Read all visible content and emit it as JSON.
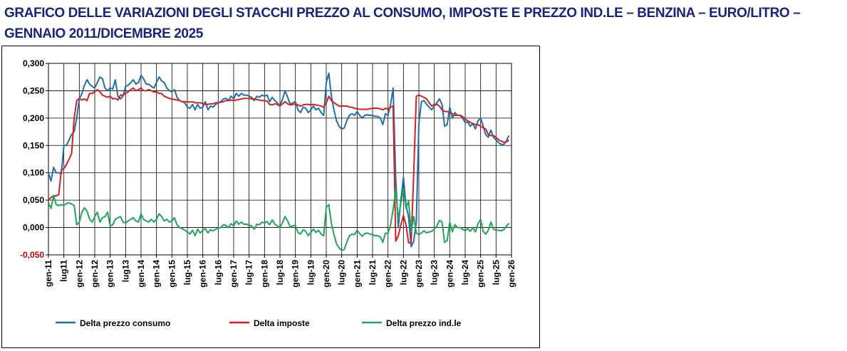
{
  "chart_data": {
    "type": "line",
    "title": "GRAFICO DELLE VARIAZIONI DEGLI STACCHI PREZZO AL CONSUMO, IMPOSTE E PREZZO IND.LE – BENZINA – EURO/LITRO – GENNAIO 2011/DICEMBRE 2025",
    "categories": [
      "gen-11",
      null,
      null,
      null,
      null,
      null,
      "lug11",
      null,
      null,
      null,
      null,
      null,
      "gen-12",
      null,
      null,
      null,
      null,
      null,
      "gen-12",
      null,
      null,
      null,
      null,
      null,
      "gen-13",
      null,
      null,
      null,
      null,
      null,
      "lug13",
      null,
      null,
      null,
      null,
      null,
      "gen-14",
      null,
      null,
      null,
      null,
      null,
      "gen-14",
      null,
      null,
      null,
      null,
      null,
      "gen-15",
      null,
      null,
      null,
      null,
      null,
      "lug-15",
      null,
      null,
      null,
      null,
      null,
      "gen-16",
      null,
      null,
      null,
      null,
      null,
      "lug-16",
      null,
      null,
      null,
      null,
      null,
      "gen-17",
      null,
      null,
      null,
      null,
      null,
      "lug-17",
      null,
      null,
      null,
      null,
      null,
      "gen-18",
      null,
      null,
      null,
      null,
      null,
      "lug-18",
      null,
      null,
      null,
      null,
      null,
      "gen-19",
      null,
      null,
      null,
      null,
      null,
      "lug-19",
      null,
      null,
      null,
      null,
      null,
      "gen-20",
      null,
      null,
      null,
      null,
      null,
      "lug-20",
      null,
      null,
      null,
      null,
      null,
      "gen-21",
      null,
      null,
      null,
      null,
      null,
      "lug-21",
      null,
      null,
      null,
      null,
      null,
      "gen-22",
      null,
      null,
      null,
      null,
      null,
      "lug-22",
      null,
      null,
      null,
      null,
      null,
      "gen-23",
      null,
      null,
      null,
      null,
      null,
      "lug-23",
      null,
      null,
      null,
      null,
      null,
      "gen-24",
      null,
      null,
      null,
      null,
      null,
      "lug-24",
      null,
      null,
      null,
      null,
      null,
      "gen-25",
      null,
      null,
      null,
      null,
      null,
      "lug-25",
      null,
      null,
      null,
      null,
      null,
      "gen-26"
    ],
    "series": [
      {
        "name": "Delta prezzo consumo",
        "color": "#1f6fa8",
        "values": [
          0.1,
          0.085,
          0.11,
          0.1,
          0.1,
          0.098,
          0.15,
          0.15,
          0.16,
          0.17,
          0.175,
          0.2,
          0.235,
          0.245,
          0.26,
          0.27,
          0.262,
          0.258,
          0.255,
          0.265,
          0.275,
          0.272,
          0.255,
          0.25,
          0.255,
          0.253,
          0.27,
          0.24,
          0.235,
          0.24,
          0.258,
          0.26,
          0.265,
          0.27,
          0.262,
          0.265,
          0.278,
          0.272,
          0.262,
          0.262,
          0.258,
          0.255,
          0.265,
          0.275,
          0.268,
          0.265,
          0.255,
          0.25,
          0.248,
          0.252,
          0.238,
          0.232,
          0.23,
          0.228,
          0.22,
          0.218,
          0.225,
          0.215,
          0.225,
          0.218,
          0.22,
          0.23,
          0.215,
          0.222,
          0.22,
          0.225,
          0.228,
          0.23,
          0.235,
          0.236,
          0.232,
          0.24,
          0.235,
          0.245,
          0.24,
          0.245,
          0.242,
          0.242,
          0.24,
          0.238,
          0.232,
          0.24,
          0.238,
          0.242,
          0.24,
          0.242,
          0.23,
          0.238,
          0.232,
          0.228,
          0.222,
          0.235,
          0.25,
          0.238,
          0.225,
          0.228,
          0.23,
          0.215,
          0.21,
          0.22,
          0.218,
          0.21,
          0.215,
          0.222,
          0.215,
          0.218,
          0.21,
          0.205,
          0.265,
          0.282,
          0.24,
          0.215,
          0.195,
          0.185,
          0.18,
          0.182,
          0.195,
          0.205,
          0.208,
          0.205,
          0.212,
          0.205,
          0.2,
          0.205,
          0.206,
          0.205,
          0.205,
          0.203,
          0.203,
          0.2,
          0.188,
          0.208,
          0.205,
          0.225,
          0.255,
          0.09,
          0.0,
          0.05,
          0.092,
          0.04,
          0.02,
          -0.035,
          -0.025,
          0.01,
          0.19,
          0.23,
          0.232,
          0.225,
          0.22,
          0.215,
          0.222,
          0.228,
          0.235,
          0.225,
          0.185,
          0.188,
          0.22,
          0.2,
          0.21,
          0.205,
          0.205,
          0.2,
          0.192,
          0.193,
          0.185,
          0.19,
          0.18,
          0.195,
          0.2,
          0.185,
          0.17,
          0.165,
          0.178,
          0.165,
          0.16,
          0.155,
          0.152,
          0.152,
          0.158,
          0.168,
          null
        ]
      },
      {
        "name": "Delta imposte",
        "color": "#d42020",
        "values": [
          0.05,
          0.055,
          0.058,
          0.058,
          0.06,
          0.105,
          0.108,
          0.115,
          0.125,
          0.135,
          0.2,
          0.232,
          0.236,
          0.233,
          0.235,
          0.232,
          0.245,
          0.245,
          0.248,
          0.252,
          0.248,
          0.242,
          0.24,
          0.238,
          0.24,
          0.235,
          0.236,
          0.233,
          0.242,
          0.242,
          0.245,
          0.248,
          0.252,
          0.255,
          0.25,
          0.252,
          0.255,
          0.25,
          0.25,
          0.252,
          0.25,
          0.248,
          0.248,
          0.245,
          0.245,
          0.24,
          0.238,
          0.236,
          0.235,
          0.234,
          0.233,
          0.232,
          0.23,
          0.23,
          0.23,
          0.229,
          0.23,
          0.228,
          0.228,
          0.228,
          0.227,
          0.225,
          0.225,
          0.226,
          0.226,
          0.228,
          0.228,
          0.229,
          0.23,
          0.232,
          0.232,
          0.233,
          0.232,
          0.233,
          0.234,
          0.235,
          0.236,
          0.236,
          0.236,
          0.235,
          0.235,
          0.234,
          0.233,
          0.232,
          0.232,
          0.231,
          0.225,
          0.224,
          0.226,
          0.225,
          0.222,
          0.226,
          0.23,
          0.226,
          0.224,
          0.225,
          0.226,
          0.224,
          0.222,
          0.224,
          0.225,
          0.225,
          0.224,
          0.225,
          0.224,
          0.223,
          0.222,
          0.22,
          0.228,
          0.24,
          0.232,
          0.228,
          0.225,
          0.222,
          0.222,
          0.222,
          0.222,
          0.22,
          0.22,
          0.218,
          0.217,
          0.216,
          0.216,
          0.216,
          0.216,
          0.217,
          0.218,
          0.218,
          0.218,
          0.217,
          0.215,
          0.218,
          0.216,
          0.22,
          0.222,
          -0.025,
          -0.015,
          0.005,
          0.022,
          0.005,
          -0.028,
          -0.028,
          0.1,
          0.24,
          0.242,
          0.24,
          0.238,
          0.235,
          0.228,
          0.222,
          0.225,
          0.225,
          0.222,
          0.215,
          0.212,
          0.212,
          0.21,
          0.208,
          0.205,
          0.205,
          0.205,
          0.203,
          0.198,
          0.195,
          0.192,
          0.19,
          0.188,
          0.188,
          0.185,
          0.182,
          0.18,
          0.17,
          0.168,
          0.168,
          0.165,
          0.16,
          0.158,
          0.156,
          0.156,
          0.16,
          null
        ]
      },
      {
        "name": "Delta prezzo ind.le",
        "color": "#21a55a",
        "values": [
          0.045,
          0.035,
          0.058,
          0.042,
          0.04,
          0.042,
          0.04,
          0.044,
          0.045,
          0.043,
          0.04,
          0.005,
          0.01,
          0.028,
          0.036,
          0.03,
          0.015,
          0.01,
          0.02,
          0.028,
          0.01,
          0.018,
          0.02,
          0.028,
          0.003,
          0.005,
          0.015,
          0.018,
          0.02,
          0.01,
          0.008,
          0.012,
          0.015,
          0.018,
          0.012,
          0.01,
          0.025,
          0.015,
          0.012,
          0.01,
          0.015,
          0.01,
          0.015,
          0.025,
          0.02,
          0.012,
          0.015,
          0.01,
          0.012,
          0.018,
          0.005,
          0.0,
          -0.002,
          -0.005,
          -0.008,
          -0.012,
          -0.005,
          -0.015,
          -0.003,
          -0.01,
          -0.005,
          -0.002,
          -0.01,
          -0.004,
          -0.006,
          -0.003,
          -0.001,
          0.0,
          0.005,
          0.004,
          0.0,
          0.007,
          0.003,
          0.012,
          0.006,
          0.01,
          0.006,
          0.006,
          0.004,
          0.003,
          -0.003,
          0.006,
          0.005,
          0.01,
          0.008,
          0.011,
          0.005,
          0.014,
          0.006,
          0.003,
          0.0,
          0.009,
          0.02,
          0.012,
          0.001,
          0.003,
          0.004,
          -0.009,
          -0.012,
          -0.004,
          -0.007,
          -0.015,
          -0.009,
          -0.003,
          -0.009,
          -0.005,
          -0.012,
          -0.015,
          0.037,
          0.042,
          0.008,
          -0.013,
          -0.03,
          -0.037,
          -0.042,
          -0.04,
          -0.027,
          -0.015,
          -0.012,
          -0.013,
          -0.005,
          -0.011,
          -0.016,
          -0.011,
          -0.01,
          -0.012,
          -0.013,
          -0.015,
          -0.015,
          -0.017,
          -0.027,
          -0.01,
          -0.011,
          0.005,
          0.033,
          0.07,
          0.015,
          0.045,
          0.07,
          0.035,
          0.048,
          -0.007,
          0.02,
          -0.01,
          -0.013,
          -0.01,
          -0.006,
          -0.01,
          -0.008,
          -0.007,
          -0.003,
          0.003,
          0.013,
          0.01,
          -0.027,
          -0.024,
          0.01,
          -0.008,
          0.005,
          0.0,
          0.0,
          -0.003,
          -0.006,
          -0.002,
          -0.007,
          0.0,
          -0.008,
          0.007,
          0.015,
          -0.007,
          -0.012,
          -0.005,
          0.01,
          -0.003,
          -0.005,
          -0.005,
          -0.006,
          -0.004,
          0.002,
          0.008,
          null
        ]
      }
    ],
    "ylim": [
      -0.05,
      0.3
    ],
    "yticks": [
      {
        "value": -0.05,
        "label": "-0,050"
      },
      {
        "value": 0,
        "label": "0,000"
      },
      {
        "value": 0.05,
        "label": "0,050"
      },
      {
        "value": 0.1,
        "label": "0,100"
      },
      {
        "value": 0.15,
        "label": "0,150"
      },
      {
        "value": 0.2,
        "label": "0,200"
      },
      {
        "value": 0.25,
        "label": "0,250"
      },
      {
        "value": 0.3,
        "label": "0,300"
      }
    ],
    "grid": true,
    "legend": "bottom"
  }
}
